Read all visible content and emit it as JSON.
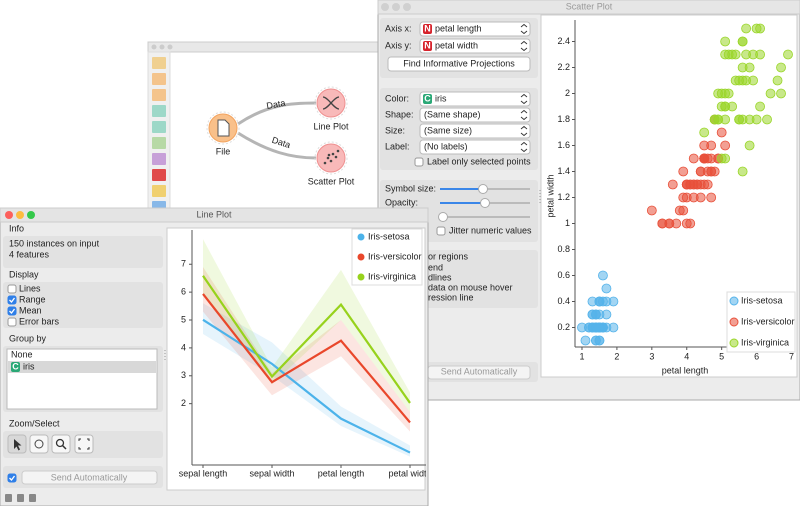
{
  "canvas_window": {
    "nodes": [
      {
        "label": "File"
      },
      {
        "label": "Line Plot"
      },
      {
        "label": "Scatter Plot"
      }
    ],
    "links": [
      {
        "label": "Data"
      },
      {
        "label": "Data"
      }
    ]
  },
  "scatter_window": {
    "title": "Scatter Plot",
    "controls": {
      "axis_x_label": "Axis x:",
      "axis_x_icon": "N",
      "axis_x_value": "petal length",
      "axis_y_label": "Axis y:",
      "axis_y_icon": "N",
      "axis_y_value": "petal width",
      "button": "Find Informative Projections",
      "color_label": "Color:",
      "color_icon": "C",
      "color_value": "iris",
      "shape_label": "Shape:",
      "shape_value": "(Same shape)",
      "size_label": "Size:",
      "size_value": "(Same size)",
      "label_label": "Label:",
      "label_value": "(No labels)",
      "label_only": "Label only selected points",
      "symbol_size": "Symbol size:",
      "opacity": "Opacity:",
      "jitter": "Jitter numeric values",
      "fragments": [
        "or regions",
        "end",
        "dlines",
        "data on mouse hover",
        "ression line"
      ],
      "send": "Send Automatically"
    },
    "chart_data": {
      "type": "scatter",
      "xlabel": "petal length",
      "ylabel": "petal width",
      "xlim": [
        0.8,
        7.1
      ],
      "ylim": [
        0.05,
        2.55
      ],
      "xticks": [
        1,
        2,
        3,
        4,
        5,
        6,
        7
      ],
      "yticks": [
        0.2,
        0.4,
        0.6,
        0.8,
        1,
        1.2,
        1.4,
        1.6,
        1.8,
        2,
        2.2,
        2.4
      ],
      "legend": "lower right",
      "series": [
        {
          "name": "Iris-setosa",
          "color": "#55b3ea",
          "x": [
            1.4,
            1.4,
            1.3,
            1.5,
            1.4,
            1.7,
            1.4,
            1.5,
            1.4,
            1.5,
            1.5,
            1.6,
            1.4,
            1.1,
            1.2,
            1.5,
            1.3,
            1.4,
            1.7,
            1.5,
            1.7,
            1.5,
            1.0,
            1.7,
            1.9,
            1.6,
            1.6,
            1.5,
            1.4,
            1.6,
            1.6,
            1.5,
            1.5,
            1.4,
            1.5,
            1.2,
            1.3,
            1.4,
            1.3,
            1.5,
            1.3,
            1.3,
            1.3,
            1.6,
            1.9,
            1.4,
            1.6,
            1.4,
            1.5,
            1.4
          ],
          "y": [
            0.2,
            0.2,
            0.2,
            0.2,
            0.2,
            0.4,
            0.3,
            0.2,
            0.2,
            0.1,
            0.2,
            0.2,
            0.1,
            0.1,
            0.2,
            0.4,
            0.4,
            0.3,
            0.3,
            0.3,
            0.2,
            0.4,
            0.2,
            0.5,
            0.2,
            0.2,
            0.4,
            0.2,
            0.2,
            0.2,
            0.2,
            0.4,
            0.1,
            0.2,
            0.2,
            0.2,
            0.2,
            0.1,
            0.2,
            0.2,
            0.3,
            0.3,
            0.2,
            0.6,
            0.4,
            0.3,
            0.2,
            0.2,
            0.2,
            0.2
          ]
        },
        {
          "name": "Iris-versicolor",
          "color": "#e8503a",
          "x": [
            4.7,
            4.5,
            4.9,
            4.0,
            4.6,
            4.5,
            4.7,
            3.3,
            4.6,
            3.9,
            3.5,
            4.2,
            4.0,
            4.7,
            3.6,
            4.4,
            4.5,
            4.1,
            4.5,
            3.9,
            4.8,
            4.0,
            4.9,
            4.7,
            4.3,
            4.4,
            4.8,
            5.0,
            4.5,
            3.5,
            3.8,
            3.7,
            3.9,
            5.1,
            4.5,
            4.5,
            4.7,
            4.4,
            4.1,
            4.0,
            4.4,
            4.6,
            4.0,
            3.3,
            4.2,
            4.2,
            4.2,
            4.3,
            3.0,
            4.1
          ],
          "y": [
            1.4,
            1.5,
            1.5,
            1.3,
            1.5,
            1.3,
            1.6,
            1.0,
            1.3,
            1.4,
            1.0,
            1.5,
            1.0,
            1.4,
            1.3,
            1.4,
            1.5,
            1.0,
            1.5,
            1.1,
            1.8,
            1.3,
            1.5,
            1.2,
            1.3,
            1.4,
            1.4,
            1.7,
            1.5,
            1.0,
            1.1,
            1.0,
            1.2,
            1.6,
            1.5,
            1.6,
            1.5,
            1.3,
            1.3,
            1.3,
            1.2,
            1.4,
            1.2,
            1.0,
            1.3,
            1.2,
            1.3,
            1.3,
            1.1,
            1.3
          ]
        },
        {
          "name": "Iris-virginica",
          "color": "#9ad62a",
          "x": [
            6.0,
            5.1,
            5.9,
            5.6,
            5.8,
            6.6,
            4.5,
            6.3,
            5.8,
            6.1,
            5.1,
            5.3,
            5.5,
            5.0,
            5.1,
            5.3,
            5.5,
            6.7,
            6.9,
            5.0,
            5.7,
            4.9,
            6.7,
            4.9,
            5.7,
            6.0,
            4.8,
            4.9,
            5.6,
            5.8,
            6.1,
            6.4,
            5.6,
            5.1,
            5.6,
            6.1,
            5.6,
            5.5,
            4.8,
            5.4,
            5.6,
            5.1,
            5.1,
            5.9,
            5.7,
            5.2,
            5.0,
            5.2,
            5.4,
            5.1
          ],
          "y": [
            2.5,
            1.9,
            2.1,
            1.8,
            2.2,
            2.1,
            1.7,
            1.8,
            1.8,
            2.5,
            2.0,
            1.9,
            2.1,
            2.0,
            2.4,
            2.3,
            1.8,
            2.2,
            2.3,
            1.5,
            2.3,
            2.0,
            2.0,
            1.8,
            2.1,
            1.8,
            1.8,
            1.8,
            2.1,
            1.6,
            1.9,
            2.0,
            2.2,
            1.5,
            1.4,
            2.3,
            2.4,
            1.8,
            1.8,
            2.1,
            2.4,
            2.3,
            1.9,
            2.3,
            2.5,
            2.3,
            1.9,
            2.0,
            2.3,
            1.8
          ]
        }
      ]
    }
  },
  "line_window": {
    "title": "Line Plot",
    "info_header": "Info",
    "info_lines": [
      "150 instances on input",
      "4 features"
    ],
    "display_header": "Display",
    "display_options": [
      {
        "label": "Lines",
        "checked": false
      },
      {
        "label": "Range",
        "checked": true
      },
      {
        "label": "Mean",
        "checked": true
      },
      {
        "label": "Error bars",
        "checked": false
      }
    ],
    "group_header": "Group by",
    "group_options": [
      "None",
      "iris"
    ],
    "group_icon": "C",
    "zoom_header": "Zoom/Select",
    "send": "Send Automatically",
    "chart_data": {
      "type": "line",
      "categories": [
        "sepal length",
        "sepal width",
        "petal length",
        "petal width"
      ],
      "ylim": [
        -0.2,
        8.3
      ],
      "yticks": [
        2,
        3,
        4,
        5,
        6,
        7
      ],
      "legend": "upper right",
      "series": [
        {
          "name": "Iris-setosa",
          "color": "#4cb3ea",
          "values": [
            5.006,
            3.428,
            1.462,
            0.246
          ],
          "band_low": [
            4.5,
            3.0,
            1.2,
            0.1
          ],
          "band_high": [
            5.6,
            4.2,
            1.9,
            0.5
          ]
        },
        {
          "name": "Iris-versicolor",
          "color": "#e9472b",
          "values": [
            5.936,
            2.77,
            4.26,
            1.326
          ],
          "band_low": [
            5.3,
            2.3,
            3.7,
            1.0
          ],
          "band_high": [
            6.9,
            3.1,
            5.0,
            1.7
          ]
        },
        {
          "name": "Iris-virginica",
          "color": "#97d21c",
          "values": [
            6.588,
            2.974,
            5.552,
            2.026
          ],
          "band_low": [
            5.9,
            2.7,
            5.0,
            1.7
          ],
          "band_high": [
            7.9,
            3.3,
            6.8,
            2.4
          ]
        }
      ]
    }
  }
}
